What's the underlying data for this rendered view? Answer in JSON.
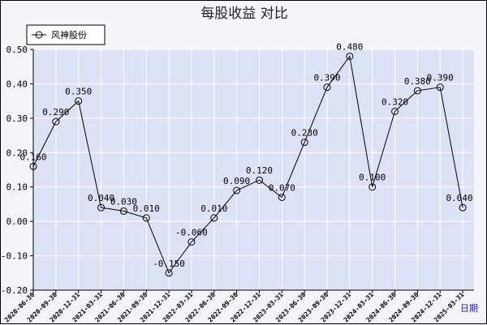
{
  "chart_data": {
    "type": "line",
    "title": "每股收益  对比",
    "xlabel": "日期",
    "ylabel": "",
    "ylim": [
      -0.2,
      0.5
    ],
    "yticks": [
      "0.50",
      "0.40",
      "0.30",
      "0.20",
      "0.10",
      "0.00",
      "-0.10",
      "-0.20"
    ],
    "ytick_values": [
      0.5,
      0.4,
      0.3,
      0.2,
      0.1,
      0.0,
      -0.1,
      -0.2
    ],
    "grid": true,
    "legend_position": "top-left",
    "categories": [
      "2020-06-30",
      "2020-09-30",
      "2020-12-31",
      "2021-03-31",
      "2021-06-30",
      "2021-09-30",
      "2021-12-31",
      "2022-03-31",
      "2022-06-30",
      "2022-09-30",
      "2022-12-31",
      "2023-03-31",
      "2023-06-30",
      "2023-09-30",
      "2023-12-31",
      "2024-03-31",
      "2024-06-30",
      "2024-09-30",
      "2024-12-31",
      "2025-03-31"
    ],
    "series": [
      {
        "name": "风神股份",
        "values": [
          0.16,
          0.29,
          0.35,
          0.04,
          0.03,
          0.01,
          -0.15,
          -0.06,
          0.01,
          0.09,
          0.12,
          0.07,
          0.23,
          0.39,
          0.48,
          0.1,
          0.32,
          0.38,
          0.39,
          0.04
        ],
        "labels": [
          "0.160",
          "0.290",
          "0.350",
          "0.040",
          "0.030",
          "0.010",
          "-0.150",
          "-0.060",
          "0.010",
          "0.090",
          "0.120",
          "0.070",
          "0.230",
          "0.390",
          "0.480",
          "0.100",
          "0.320",
          "0.380",
          "0.390",
          "0.040"
        ]
      }
    ],
    "colors": {
      "plot_background": "#dde1f6",
      "grid": "#ffffff",
      "line": "#000000",
      "marker_stroke": "#000000",
      "page_background": "#f4f4fb"
    }
  }
}
